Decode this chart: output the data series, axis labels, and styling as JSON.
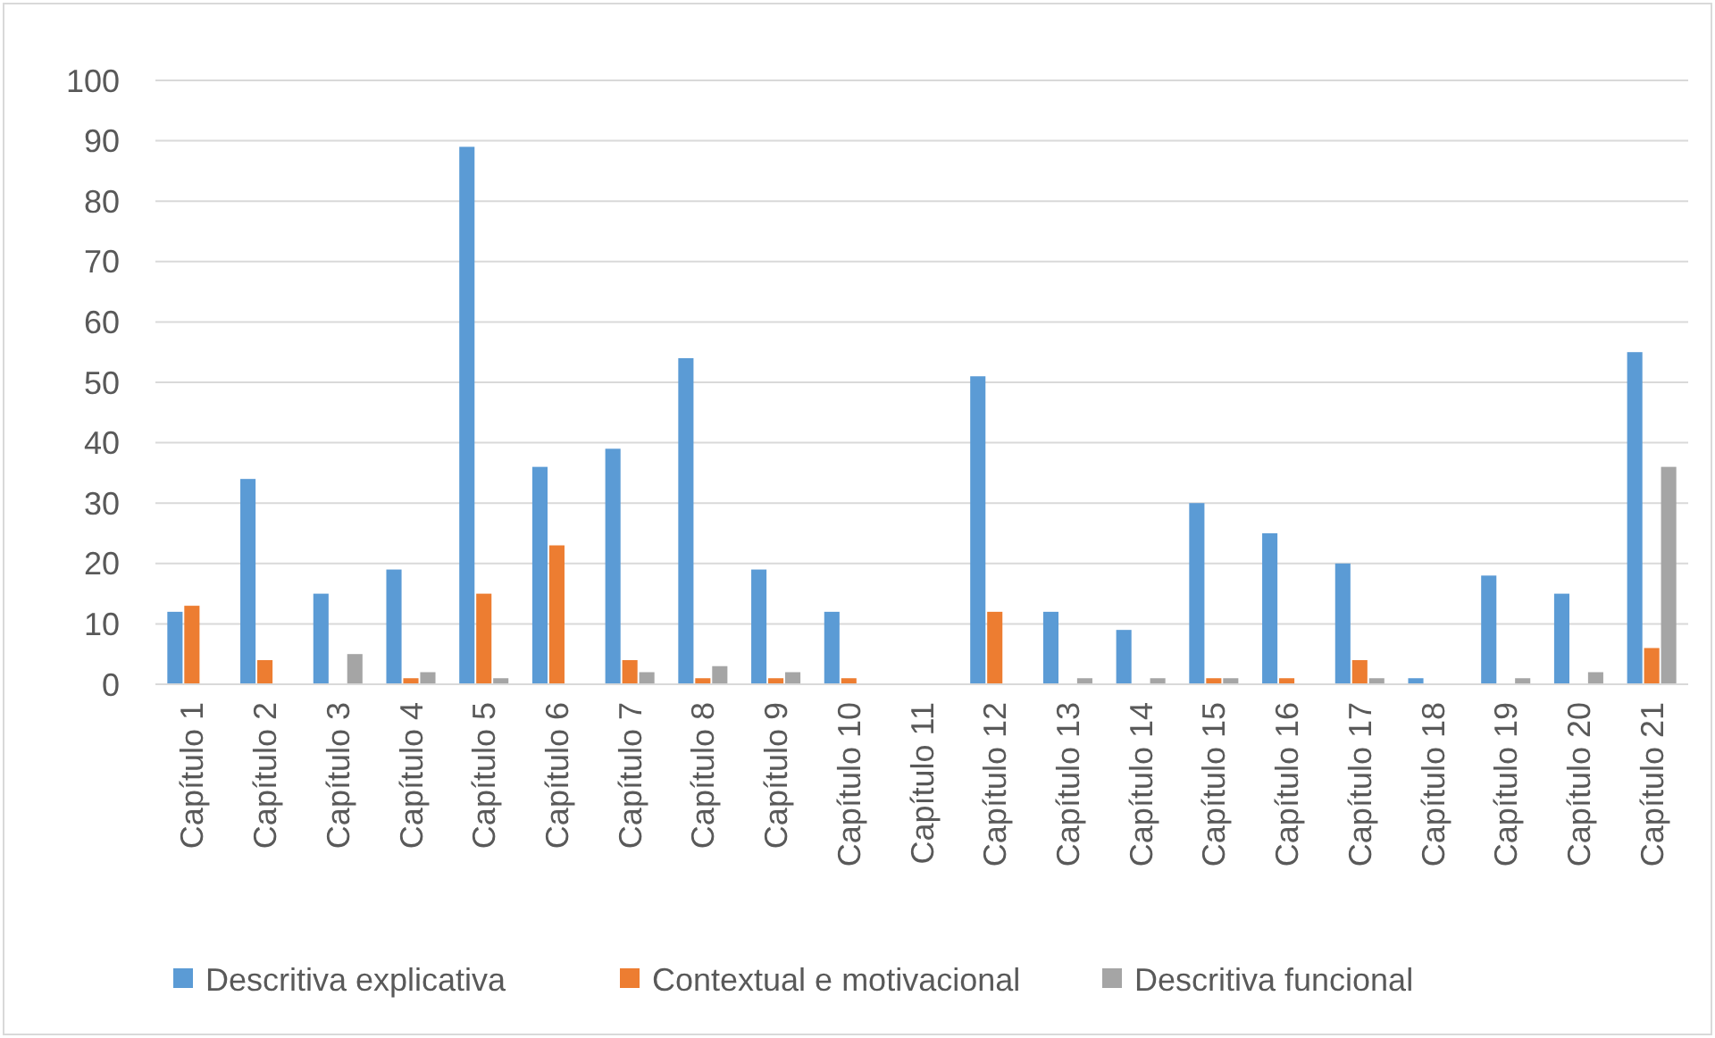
{
  "chart_data": {
    "type": "bar",
    "categories": [
      "Capítulo 1",
      "Capítulo 2",
      "Capítulo 3",
      "Capítulo 4",
      "Capítulo 5",
      "Capítulo 6",
      "Capítulo 7",
      "Capítulo 8",
      "Capítulo 9",
      "Capítulo 10",
      "Capítulo 11",
      "Capítulo 12",
      "Capítulo 13",
      "Capítulo 14",
      "Capítulo 15",
      "Capítulo 16",
      "Capítulo 17",
      "Capítulo 18",
      "Capítulo 19",
      "Capítulo 20",
      "Capítulo 21"
    ],
    "series": [
      {
        "name": "Descritiva explicativa",
        "color": "#5b9bd5",
        "values": [
          12,
          34,
          15,
          19,
          89,
          36,
          39,
          54,
          19,
          12,
          0,
          51,
          12,
          9,
          30,
          25,
          20,
          1,
          18,
          15,
          55
        ]
      },
      {
        "name": "Contextual e motivacional",
        "color": "#ed7d31",
        "values": [
          13,
          4,
          0,
          1,
          15,
          23,
          4,
          1,
          1,
          1,
          0,
          12,
          0,
          0,
          1,
          1,
          4,
          0,
          0,
          0,
          6
        ]
      },
      {
        "name": "Descritiva funcional",
        "color": "#a5a5a5",
        "values": [
          0,
          0,
          5,
          2,
          1,
          0,
          2,
          3,
          2,
          0,
          0,
          0,
          1,
          1,
          1,
          0,
          1,
          0,
          1,
          2,
          36
        ]
      }
    ],
    "ylim": [
      0,
      100
    ],
    "yticks": [
      0,
      10,
      20,
      30,
      40,
      50,
      60,
      70,
      80,
      90,
      100
    ],
    "grid": "y",
    "legend": "bottom"
  }
}
